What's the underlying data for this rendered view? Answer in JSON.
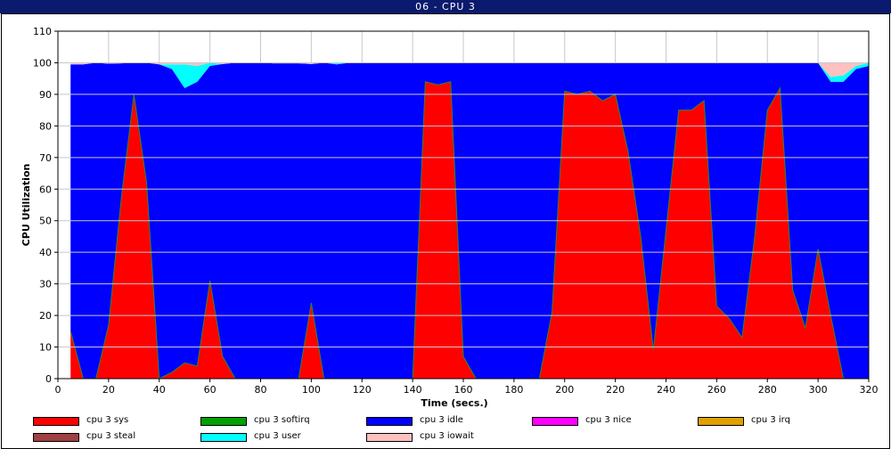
{
  "window": {
    "title": "06 - CPU 3"
  },
  "chart_data": {
    "type": "area",
    "stacked": true,
    "title": "06 - CPU 3",
    "xlabel": "Time (secs.)",
    "ylabel": "CPU Utilization",
    "xlim": [
      0,
      320
    ],
    "ylim": [
      0,
      110
    ],
    "xticks": [
      0,
      20,
      40,
      60,
      80,
      100,
      120,
      140,
      160,
      180,
      200,
      220,
      240,
      260,
      280,
      300,
      320
    ],
    "yticks": [
      0,
      10,
      20,
      30,
      40,
      50,
      60,
      70,
      80,
      90,
      100,
      110
    ],
    "grid": true,
    "legend_position": "bottom",
    "x": [
      5,
      10,
      15,
      20,
      25,
      30,
      35,
      40,
      45,
      50,
      55,
      60,
      65,
      70,
      75,
      80,
      85,
      90,
      95,
      100,
      105,
      110,
      115,
      120,
      125,
      130,
      135,
      140,
      145,
      150,
      155,
      160,
      165,
      170,
      175,
      180,
      185,
      190,
      195,
      200,
      205,
      210,
      215,
      220,
      225,
      230,
      235,
      240,
      245,
      250,
      255,
      260,
      265,
      270,
      275,
      280,
      285,
      290,
      295,
      300,
      305,
      310,
      315,
      320
    ],
    "series": [
      {
        "name": "cpu 3 sys",
        "color": "#ff0000",
        "values": [
          15,
          0,
          0,
          17,
          57,
          90,
          62,
          0,
          2,
          5,
          4,
          31,
          7,
          0,
          0,
          0,
          0,
          0,
          0,
          24,
          0,
          0,
          0,
          0,
          0,
          0,
          0,
          0,
          94,
          93,
          94,
          7,
          0,
          0,
          0,
          0,
          0,
          0,
          21,
          91,
          90,
          91,
          88,
          90,
          72,
          45,
          9,
          47,
          85,
          85,
          88,
          23,
          19,
          13,
          45,
          85,
          92,
          28,
          16,
          41,
          20,
          0,
          0,
          0
        ]
      },
      {
        "name": "cpu 3 softirq",
        "color": "#00a000",
        "values": [
          0,
          0,
          0,
          0,
          0,
          0,
          0,
          0,
          0,
          0,
          0,
          0,
          0,
          0,
          0,
          0,
          0,
          0,
          0,
          0,
          0,
          0,
          0,
          0,
          0,
          0,
          0,
          0,
          0,
          0,
          0,
          0,
          0,
          0,
          0,
          0,
          0,
          0,
          0,
          0,
          0,
          0,
          0,
          0,
          0,
          0,
          0,
          0,
          0,
          0,
          0,
          0,
          0,
          0,
          0,
          0,
          0,
          0,
          0,
          0,
          0,
          0,
          0,
          0
        ]
      },
      {
        "name": "cpu 3 idle",
        "color": "#0000ff",
        "values": [
          84.5,
          99.5,
          100,
          82.7,
          42.8,
          10,
          38,
          99.5,
          96,
          87,
          90,
          68,
          92.6,
          100,
          100,
          100,
          99.8,
          99.8,
          99.8,
          75.6,
          100,
          99.5,
          100,
          100,
          100,
          100,
          100,
          100,
          6,
          7,
          6,
          93,
          100,
          100,
          100,
          100,
          100,
          100,
          79,
          9,
          10,
          9,
          12,
          10,
          28,
          55,
          91,
          53,
          15,
          15,
          12,
          77,
          81,
          87,
          55,
          15,
          8,
          72,
          84,
          59,
          74,
          94,
          98,
          99
        ]
      },
      {
        "name": "cpu 3 nice",
        "color": "#ff00ff",
        "values": [
          0,
          0,
          0,
          0,
          0,
          0,
          0,
          0,
          0,
          0,
          0,
          0,
          0,
          0,
          0,
          0,
          0,
          0,
          0,
          0,
          0,
          0,
          0,
          0,
          0,
          0,
          0,
          0,
          0,
          0,
          0,
          0,
          0,
          0,
          0,
          0,
          0,
          0,
          0,
          0,
          0,
          0,
          0,
          0,
          0,
          0,
          0,
          0,
          0,
          0,
          0,
          0,
          0,
          0,
          0,
          0,
          0,
          0,
          0,
          0,
          0,
          0,
          0,
          0
        ]
      },
      {
        "name": "cpu 3 irq",
        "color": "#e0a000",
        "values": [
          0,
          0,
          0,
          0,
          0,
          0,
          0,
          0,
          0,
          0,
          0,
          0,
          0,
          0,
          0,
          0,
          0,
          0,
          0,
          0,
          0,
          0,
          0,
          0,
          0,
          0,
          0,
          0,
          0,
          0,
          0,
          0,
          0,
          0,
          0,
          0,
          0,
          0,
          0,
          0,
          0,
          0,
          0,
          0,
          0,
          0,
          0,
          0,
          0,
          0,
          0,
          0,
          0,
          0,
          0,
          0,
          0,
          0,
          0,
          0,
          0,
          0,
          0,
          0
        ]
      },
      {
        "name": "cpu 3 steal",
        "color": "#a04040",
        "values": [
          0,
          0,
          0,
          0,
          0,
          0,
          0,
          0,
          0,
          0,
          0,
          0,
          0,
          0,
          0,
          0,
          0,
          0,
          0,
          0,
          0,
          0,
          0,
          0,
          0,
          0,
          0,
          0,
          0,
          0,
          0,
          0,
          0,
          0,
          0,
          0,
          0,
          0,
          0,
          0,
          0,
          0,
          0,
          0,
          0,
          0,
          0,
          0,
          0,
          0,
          0,
          0,
          0,
          0,
          0,
          0,
          0,
          0,
          0,
          0,
          0,
          0,
          0,
          0
        ]
      },
      {
        "name": "cpu 3 user",
        "color": "#00ffff",
        "values": [
          0,
          0,
          0,
          0,
          0,
          0,
          0,
          0,
          1.5,
          7.5,
          5,
          1,
          0,
          0,
          0,
          0,
          0,
          0,
          0,
          0,
          0,
          0.5,
          0,
          0,
          0,
          0,
          0,
          0,
          0,
          0,
          0,
          0,
          0,
          0,
          0,
          0,
          0,
          0,
          0,
          0,
          0,
          0,
          0,
          0,
          0,
          0,
          0,
          0,
          0,
          0,
          0,
          0,
          0,
          0,
          0,
          0,
          0,
          0,
          0,
          0,
          1.5,
          2,
          1,
          1
        ]
      },
      {
        "name": "cpu 3 iowait",
        "color": "#ffc0c0",
        "values": [
          0.5,
          0.5,
          0,
          0.3,
          0.2,
          0,
          0,
          0.5,
          0.5,
          0.5,
          1,
          0,
          0.4,
          0,
          0,
          0,
          0.2,
          0.2,
          0.2,
          0.4,
          0,
          0,
          0,
          0,
          0,
          0,
          0,
          0,
          0,
          0,
          0,
          0,
          0,
          0,
          0,
          0,
          0,
          0,
          0,
          0,
          0,
          0,
          0,
          0,
          0,
          0,
          0,
          0,
          0,
          0,
          0,
          0,
          0,
          0,
          0,
          0,
          0,
          0,
          0,
          0,
          4.5,
          4,
          1,
          0
        ]
      }
    ]
  }
}
